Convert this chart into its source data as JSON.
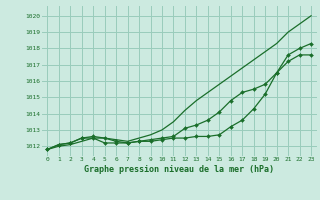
{
  "title": "Graphe pression niveau de la mer (hPa)",
  "bg_color": "#cceae0",
  "grid_color": "#99ccbb",
  "line_color": "#1a6e2a",
  "xlim": [
    -0.5,
    23.5
  ],
  "ylim": [
    1011.4,
    1020.6
  ],
  "yticks": [
    1012,
    1013,
    1014,
    1015,
    1016,
    1017,
    1018,
    1019,
    1020
  ],
  "xticks": [
    0,
    1,
    2,
    3,
    4,
    5,
    6,
    7,
    8,
    9,
    10,
    11,
    12,
    13,
    14,
    15,
    16,
    17,
    18,
    19,
    20,
    21,
    22,
    23
  ],
  "series_smooth": [
    1011.8,
    1012.0,
    1012.1,
    1012.3,
    1012.5,
    1012.5,
    1012.4,
    1012.3,
    1012.5,
    1012.7,
    1013.0,
    1013.5,
    1014.2,
    1014.8,
    1015.3,
    1015.8,
    1016.3,
    1016.8,
    1017.3,
    1017.8,
    1018.3,
    1019.0,
    1019.5,
    1020.0
  ],
  "series_mid": [
    1011.8,
    1012.1,
    1012.2,
    1012.5,
    1012.6,
    1012.5,
    1012.3,
    1012.2,
    1012.3,
    1012.4,
    1012.5,
    1012.6,
    1013.1,
    1013.3,
    1013.6,
    1014.1,
    1014.8,
    1015.3,
    1015.5,
    1015.8,
    1016.5,
    1017.2,
    1017.6,
    1017.6
  ],
  "series_low": [
    1011.8,
    1012.1,
    1012.2,
    1012.5,
    1012.5,
    1012.2,
    1012.2,
    1012.2,
    1012.3,
    1012.3,
    1012.4,
    1012.5,
    1012.5,
    1012.6,
    1012.6,
    1012.7,
    1013.2,
    1013.6,
    1014.3,
    1015.2,
    1016.5,
    1017.6,
    1018.0,
    1018.3
  ]
}
